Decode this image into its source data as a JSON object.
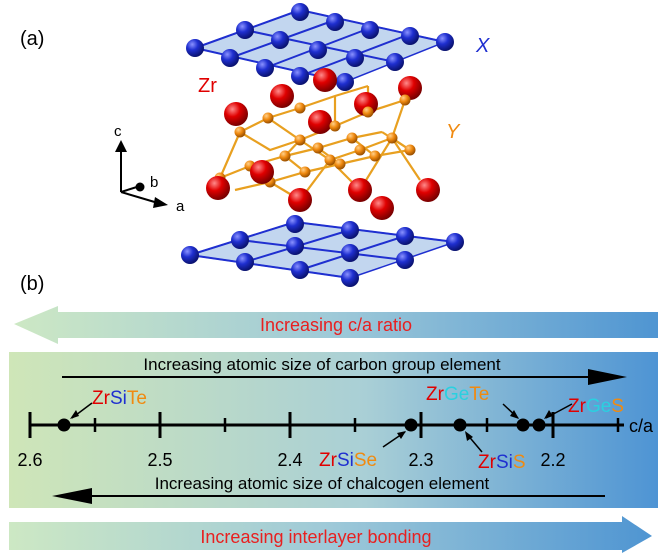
{
  "panel_a": {
    "label": "(a)",
    "atom_x": "X",
    "atom_zr": "Zr",
    "atom_y": "Y",
    "axis_c": "c",
    "axis_b": "b",
    "axis_a": "a",
    "colors": {
      "x_atom": "#1f2fd0",
      "zr_atom": "#e00000",
      "y_atom": "#f08a10",
      "bond": "#e8a020",
      "plane": "#a8c4e8"
    }
  },
  "panel_b": {
    "label": "(b)",
    "banner_top": "Increasing c/a ratio",
    "banner_bottom": "Increasing interlayer bonding",
    "arrow_right_label": "Increasing atomic size of carbon group element",
    "arrow_left_label": "Increasing atomic size of chalcogen element",
    "axis_unit": "c/a",
    "ticks": [
      "2.6",
      "2.5",
      "2.4",
      "2.3",
      "2.2"
    ],
    "compounds": [
      {
        "zr": "Zr",
        "m": "Si",
        "x": "Te",
        "m_color": "#1f2fd0",
        "x_color": "#f08a10"
      },
      {
        "zr": "Zr",
        "m": "Si",
        "x": "Se",
        "m_color": "#1f2fd0",
        "x_color": "#f08a10"
      },
      {
        "zr": "Zr",
        "m": "Ge",
        "x": "Te",
        "m_color": "#2ad0e0",
        "x_color": "#f08a10"
      },
      {
        "zr": "Zr",
        "m": "Si",
        "x": "S",
        "m_color": "#1f2fd0",
        "x_color": "#f08a10"
      },
      {
        "zr": "Zr",
        "m": "Ge",
        "x": "S",
        "m_color": "#2ad0e0",
        "x_color": "#f08a10"
      }
    ]
  }
}
